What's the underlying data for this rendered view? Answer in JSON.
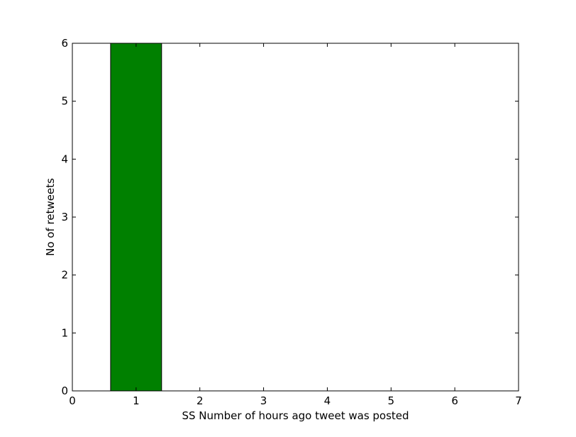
{
  "chart_data": {
    "type": "bar",
    "title": "",
    "xlabel": "SS Number of hours ago tweet was posted",
    "ylabel": "No of retweets",
    "xlim": [
      0,
      7
    ],
    "ylim": [
      0,
      6
    ],
    "xticks": [
      0,
      1,
      2,
      3,
      4,
      5,
      6,
      7
    ],
    "yticks": [
      0,
      1,
      2,
      3,
      4,
      5,
      6
    ],
    "x": [
      1,
      2,
      3,
      4,
      5,
      6
    ],
    "values": [
      6,
      0,
      0,
      0,
      0,
      0
    ],
    "bar_width": 0.8,
    "bar_color": "#008000",
    "edge_color": "#000000",
    "grid": false
  }
}
